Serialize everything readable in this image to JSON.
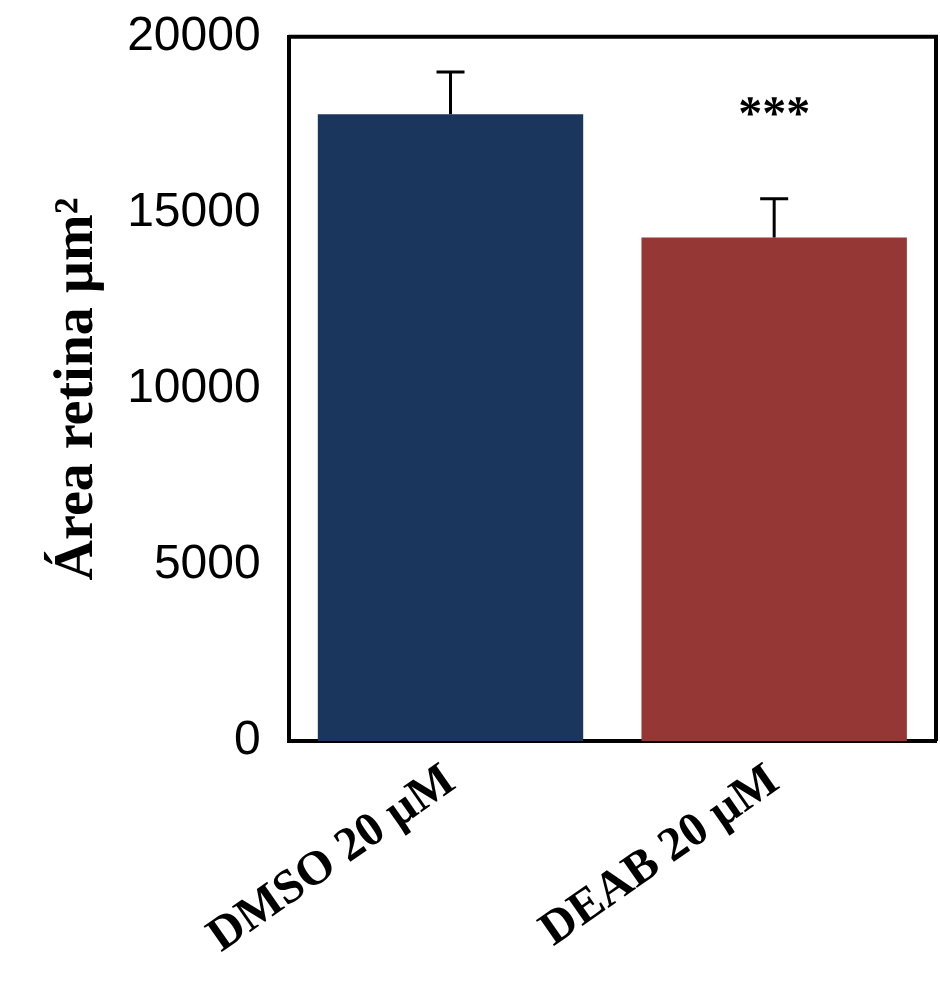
{
  "chart_data": {
    "type": "bar",
    "ylabel": "Área retina µm²",
    "categories": [
      "DMSO 20 µM",
      "DEAB 20 µM"
    ],
    "values": [
      17800,
      14300
    ],
    "colors": [
      "#1b365d",
      "#953735"
    ],
    "errors": [
      [
        17800,
        19000
      ],
      [
        14300,
        15400
      ]
    ],
    "ylim": [
      0,
      20000
    ],
    "yticks": [
      0,
      5000,
      10000,
      15000,
      20000
    ],
    "annotations": [
      "***"
    ]
  }
}
